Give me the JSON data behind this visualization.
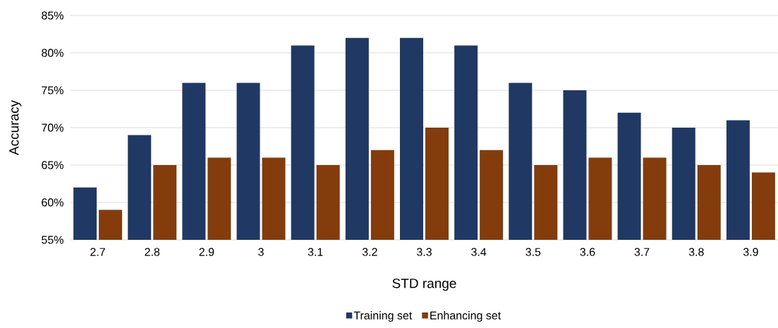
{
  "chart_data": {
    "type": "bar",
    "xlabel": "STD range",
    "ylabel": "Accuracy",
    "categories": [
      "2.7",
      "2.8",
      "2.9",
      "3",
      "3.1",
      "3.2",
      "3.3",
      "3.4",
      "3.5",
      "3.6",
      "3.7",
      "3.8",
      "3.9"
    ],
    "series": [
      {
        "name": "Training set",
        "color": "#1f3864",
        "values": [
          62,
          69,
          76,
          76,
          81,
          82,
          82,
          81,
          76,
          75,
          72,
          70,
          71
        ]
      },
      {
        "name": "Enhancing set",
        "color": "#843c0c",
        "values": [
          59,
          65,
          66,
          66,
          65,
          67,
          70,
          67,
          65,
          66,
          66,
          65,
          64
        ]
      }
    ],
    "ylim": [
      55,
      85
    ],
    "yticks": [
      {
        "value": 55,
        "label": "55%"
      },
      {
        "value": 60,
        "label": "60%"
      },
      {
        "value": 65,
        "label": "65%"
      },
      {
        "value": 70,
        "label": "70%"
      },
      {
        "value": 75,
        "label": "75%"
      },
      {
        "value": 80,
        "label": "80%"
      },
      {
        "value": 85,
        "label": "85%"
      }
    ],
    "grid": "y",
    "legend": "bottom"
  }
}
